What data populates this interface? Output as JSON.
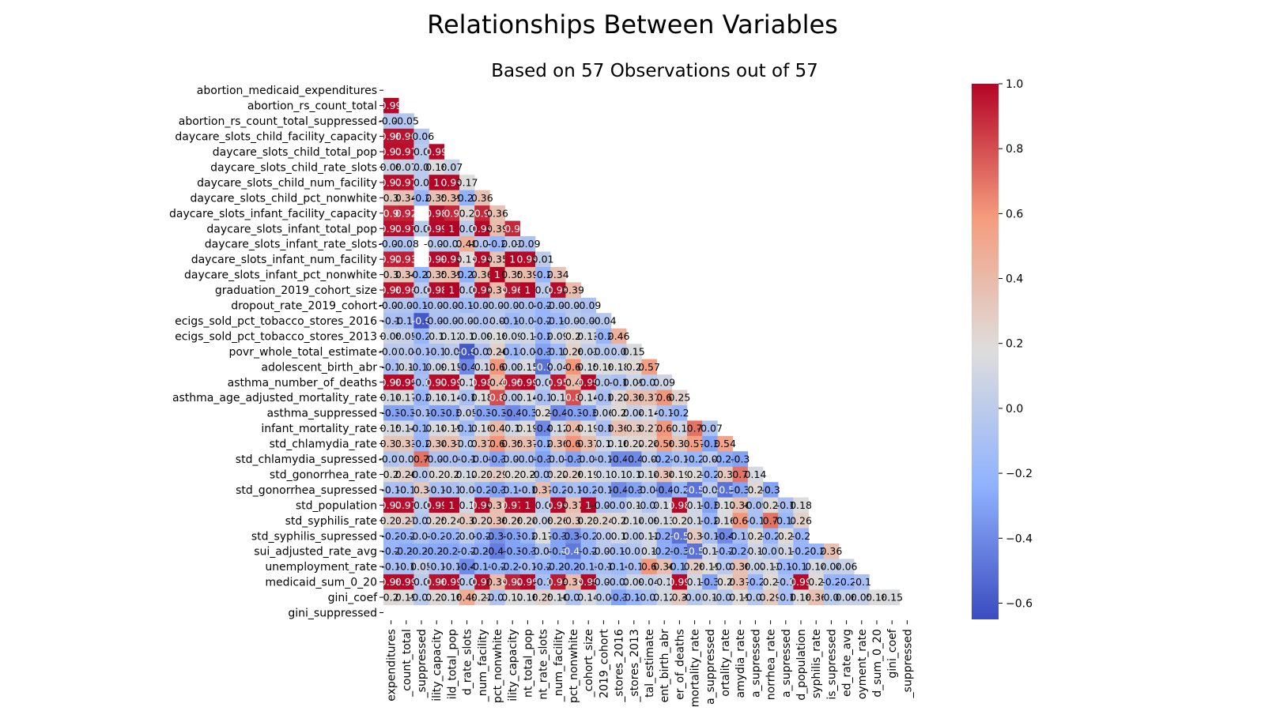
{
  "page": {
    "title": "Relationships Between Variables"
  },
  "chart_data": {
    "type": "heatmap",
    "title": "Based on 57 Observations out of 57",
    "variables": [
      "abortion_medicaid_expenditures",
      "abortion_rs_count_total",
      "abortion_rs_count_total_suppressed",
      "daycare_slots_child_facility_capacity",
      "daycare_slots_child_total_pop",
      "daycare_slots_child_rate_slots",
      "daycare_slots_child_num_facility",
      "daycare_slots_child_pct_nonwhite",
      "daycare_slots_infant_facility_capacity",
      "daycare_slots_infant_total_pop",
      "daycare_slots_infant_rate_slots",
      "daycare_slots_infant_num_facility",
      "daycare_slots_infant_pct_nonwhite",
      "graduation_2019_cohort_size",
      "dropout_rate_2019_cohort",
      "ecigs_sold_pct_tobacco_stores_2016",
      "ecigs_sold_pct_tobacco_stores_2013",
      "povr_whole_total_estimate",
      "adolescent_birth_abr",
      "asthma_number_of_deaths",
      "asthma_age_adjusted_mortality_rate",
      "asthma_suppressed",
      "infant_mortality_rate",
      "std_chlamydia_rate",
      "std_chlamydia_supressed",
      "std_gonorrhea_rate",
      "std_gonorrhea_supressed",
      "std_population",
      "std_syphilis_rate",
      "std_syphilis_supressed",
      "sui_adjusted_rate_avg",
      "unemployment_rate",
      "medicaid_sum_0_20",
      "gini_coef",
      "gini_suppressed"
    ],
    "x_tick_labels": [
      "expenditures",
      "_count_total",
      "_suppressed",
      "ility_capacity",
      "ild_total_pop",
      "d_rate_slots",
      "_num_facility",
      "pct_nonwhite",
      "ility_capacity",
      "nt_total_pop",
      "nt_rate_slots",
      "_num_facility",
      "pct_nonwhite",
      "_cohort_size",
      "2019_cohort",
      "_stores_2016",
      "_stores_2013",
      "tal_estimate",
      "ent_birth_abr",
      "er_of_deaths",
      "mortality_rate",
      "a_suppressed",
      "ortality_rate",
      "amydia_rate",
      "a_supressed",
      "norrhea_rate",
      "a_supressed",
      "d_population",
      "syphilis_rate",
      "is_supressed",
      "ed_rate_avg",
      "oyment_rate",
      "d_sum_0_20",
      "gini_coef",
      "_suppressed"
    ],
    "correlations": [
      [],
      [
        0.99
      ],
      [
        -0.05,
        -0.05
      ],
      [
        0.96,
        0.96,
        -0.06
      ],
      [
        0.97,
        0.97,
        0.0,
        0.99
      ],
      [
        0.08,
        0.07,
        0.0,
        0.18,
        0.07
      ],
      [
        0.97,
        0.97,
        -0.0,
        1.0,
        0.99,
        0.17
      ],
      [
        0.3,
        0.34,
        -0.2,
        0.35,
        0.39,
        -0.23,
        0.36
      ],
      [
        0.9,
        0.92,
        null,
        0.98,
        0.9,
        0.2,
        0.9,
        0.36
      ],
      [
        0.97,
        0.97,
        -0.0,
        0.99,
        1.0,
        0.0,
        0.99,
        0.39,
        0.9
      ],
      [
        -0.06,
        -0.08,
        null,
        -0.03,
        -0.03,
        0.48,
        -0.04,
        -0.2,
        0.03,
        -0.09
      ],
      [
        0.92,
        0.93,
        null,
        0.99,
        0.99,
        0.19,
        0.99,
        0.35,
        1.0,
        0.99,
        0.01
      ],
      [
        0.3,
        0.34,
        -0.21,
        0.35,
        0.39,
        -0.24,
        0.36,
        1.0,
        0.35,
        0.39,
        -0.2,
        0.34
      ],
      [
        0.96,
        0.96,
        -0.0,
        0.98,
        1.0,
        0.0,
        0.98,
        0.39,
        0.96,
        1.0,
        -0.0,
        0.98,
        0.39
      ],
      [
        -0.04,
        -0.06,
        -0.16,
        -0.07,
        -0.09,
        -0.14,
        -0.07,
        -0.03,
        -0.07,
        -0.08,
        -0.2,
        -0.07,
        -0.03,
        -0.09
      ],
      [
        -0.1,
        -0.11,
        -0.6,
        -0.09,
        -0.07,
        -0.02,
        -0.08,
        -0.0,
        -0.16,
        -0.07,
        -0.2,
        -0.16,
        -0.01,
        -0.06,
        -0.04
      ],
      [
        0.08,
        0.05,
        -0.2,
        0.1,
        0.12,
        0.1,
        0.09,
        0.18,
        0.09,
        0.1,
        -0.2,
        0.09,
        0.2,
        0.13,
        -0.2,
        0.46
      ],
      [
        -0.02,
        0.0,
        -0.1,
        -0.1,
        0.0,
        -0.6,
        -0.09,
        0.26,
        -0.18,
        0.0,
        -0.3,
        -0.15,
        0.26,
        0.03,
        -0.03,
        0.0,
        0.15
      ],
      [
        -0.1,
        0.1,
        -0.16,
        0.09,
        0.15,
        -0.4,
        0.1,
        0.6,
        0.03,
        0.15,
        -0.5,
        0.04,
        0.6,
        0.15,
        0.18,
        0.18,
        0.2,
        0.57
      ],
      [
        0.98,
        0.99,
        -0.1,
        0.97,
        0.99,
        0.1,
        0.98,
        0.4,
        0.95,
        0.99,
        -0.0,
        0.95,
        0.4,
        0.99,
        -0.03,
        -0.1,
        0.09,
        -0.01,
        0.09
      ],
      [
        0.14,
        0.17,
        -0.2,
        0.14,
        0.14,
        -0.1,
        0.18,
        0.8,
        0.01,
        0.14,
        -0.1,
        0.1,
        0.8,
        0.14,
        -0.1,
        0.22,
        0.38,
        0.37,
        0.6,
        0.25
      ],
      [
        -0.3,
        -0.3,
        -0.1,
        -0.3,
        -0.3,
        0.05,
        -0.3,
        -0.3,
        -0.4,
        -0.3,
        0.2,
        -0.4,
        -0.3,
        -0.3,
        0.06,
        0.2,
        0.04,
        0.14,
        -0.1,
        -0.2
      ],
      [
        0.15,
        0.14,
        -0.18,
        0.14,
        0.19,
        -0.15,
        0.16,
        0.4,
        0.1,
        0.19,
        -0.4,
        0.12,
        0.4,
        0.19,
        -0.1,
        0.36,
        0.3,
        0.27,
        0.6,
        0.1,
        0.7,
        -0.07
      ],
      [
        0.33,
        0.33,
        -0.2,
        0.34,
        0.37,
        -0.01,
        0.37,
        0.6,
        0.35,
        0.37,
        -0.2,
        0.36,
        0.6,
        0.37,
        0.1,
        0.16,
        0.22,
        0.24,
        0.56,
        0.33,
        0.57,
        -0.3,
        0.54
      ],
      [
        -0.07,
        0.0,
        0.7,
        -0.08,
        -0.09,
        -0.1,
        -0.09,
        -0.3,
        -0.07,
        -0.09,
        -0.3,
        -0.07,
        -0.3,
        -0.09,
        -0.1,
        -0.4,
        -0.4,
        -0.0,
        -0.23,
        -0.1,
        -0.2,
        -0.0,
        -0.25,
        -0.3
      ],
      [
        0.2,
        0.26,
        -0.02,
        0.2,
        0.2,
        0.12,
        0.23,
        0.29,
        0.2,
        0.2,
        -0.09,
        0.22,
        0.26,
        0.19,
        0.1,
        0.1,
        0.1,
        0.14,
        0.34,
        0.19,
        0.2,
        -0.2,
        0.3,
        0.7,
        0.14
      ],
      [
        -0.1,
        -0.1,
        0.3,
        -0.1,
        -0.1,
        -0.0,
        -0.2,
        -0.3,
        -0.16,
        -0.1,
        0.37,
        -0.2,
        -0.1,
        -0.2,
        -0.1,
        -0.4,
        -0.3,
        -0.09,
        -0.4,
        -0.2,
        -0.5,
        0.0,
        -0.5,
        -0.3,
        0.2,
        -0.3
      ],
      [
        0.97,
        0.97,
        -0.0,
        0.99,
        1.0,
        0.1,
        0.99,
        0.37,
        0.97,
        1.0,
        0.0,
        0.99,
        0.37,
        1.0,
        -0.07,
        -0.07,
        0.1,
        -0.06,
        0.11,
        0.98,
        0.1,
        -0.3,
        0.17,
        0.36,
        -0.09,
        0.2,
        -0.1,
        0.18
      ],
      [
        0.23,
        0.27,
        -0.05,
        0.25,
        0.24,
        0.3,
        0.27,
        0.36,
        0.26,
        0.24,
        0.08,
        0.26,
        0.3,
        0.23,
        0.24,
        0.2,
        0.14,
        0.09,
        0.13,
        0.2,
        0.1,
        -0.2,
        0.16,
        0.6,
        -0.1,
        0.7,
        -0.18,
        0.26
      ],
      [
        -0.2,
        -0.2,
        -0.08,
        -0.2,
        -0.2,
        -0.0,
        -0.2,
        -0.38,
        -0.3,
        -0.2,
        0.17,
        -0.3,
        -0.38,
        -0.2,
        -0.0,
        0.1,
        0.01,
        0.12,
        -0.26,
        -0.5,
        0.3,
        -0.1,
        -0.4,
        -0.12,
        0.2,
        -0.2,
        0.2,
        -0.2
      ],
      [
        -0.2,
        -0.26,
        -0.25,
        -0.27,
        -0.28,
        -0.2,
        -0.27,
        -0.45,
        -0.3,
        -0.3,
        -0.08,
        -0.3,
        -0.47,
        -0.2,
        -0.02,
        -0.11,
        -0.05,
        0.1,
        -0.25,
        -0.3,
        -0.5,
        0.1,
        -0.2,
        -0.24,
        0.1,
        -0.07,
        0.1,
        -0.2,
        -0.2,
        0.36
      ],
      [
        -0.1,
        -0.1,
        0.05,
        -0.1,
        -0.1,
        -0.4,
        -0.19,
        -0.2,
        -0.24,
        -0.1,
        -0.2,
        -0.23,
        -0.26,
        -0.15,
        -0.1,
        -0.16,
        -0.1,
        0.6,
        0.36,
        -0.17,
        0.28,
        0.19,
        -0.02,
        0.36,
        0.07,
        0.13,
        -0.19,
        -0.17,
        0.14,
        0.04,
        0.06
      ],
      [
        0.98,
        0.99,
        -0.0,
        0.96,
        0.99,
        0.0,
        0.97,
        0.39,
        0.92,
        0.99,
        -0.1,
        0.94,
        0.39,
        0.99,
        -0.03,
        -0.08,
        0.09,
        0.04,
        0.1,
        0.99,
        0.1,
        -0.3,
        0.2,
        0.37,
        -0.2,
        0.2,
        -0.1,
        0.99,
        0.2,
        -0.2,
        -0.2,
        -0.1
      ],
      [
        0.2,
        0.19,
        -0.01,
        0.21,
        0.16,
        0.49,
        0.22,
        -0.07,
        0.17,
        0.16,
        0.25,
        0.16,
        -0.07,
        0.14,
        0.0,
        -0.3,
        -0.19,
        -0.07,
        0.12,
        0.3,
        -0.03,
        0.1,
        -0.03,
        0.19,
        -0.03,
        0.29,
        -0.1,
        0.18,
        0.36,
        -0.0,
        0.06,
        0.05,
        0.18,
        0.15
      ],
      []
    ],
    "colorbar": {
      "min": -0.65,
      "max": 1.0,
      "ticks": [
        1.0,
        0.8,
        0.6,
        0.4,
        0.2,
        0.0,
        -0.2,
        -0.4,
        -0.6
      ],
      "tick_labels": [
        "1.0",
        "0.8",
        "0.6",
        "0.4",
        "0.2",
        "0.0",
        "−0.2",
        "−0.4",
        "−0.6"
      ],
      "colormap": "coolwarm"
    },
    "grid": false,
    "annotations": true
  }
}
